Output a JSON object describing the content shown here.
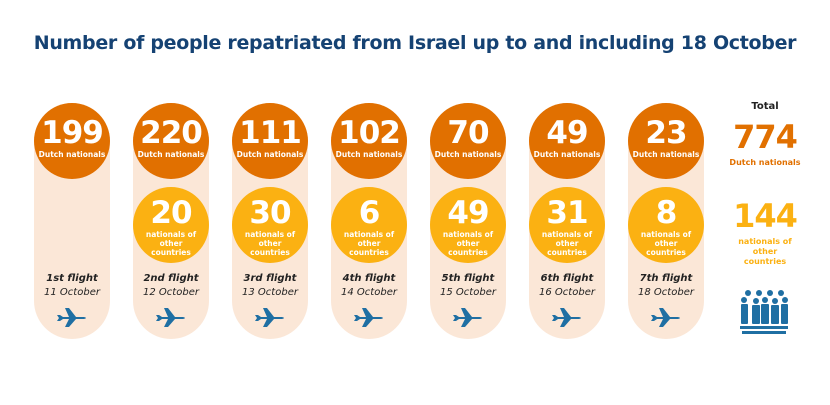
{
  "title": "Number of people repatriated from Israel up to and including 18 October",
  "colors": {
    "dutch": "#e17000",
    "other": "#fbb112",
    "title": "#154273",
    "pill": "#fbe7d7",
    "icon": "#1f6fa3"
  },
  "dutch_label": "Dutch nationals",
  "other_label": "nationals of other countries",
  "flights": [
    {
      "flight": "1st flight",
      "date": "11 October",
      "dutch": "199",
      "other": null
    },
    {
      "flight": "2nd flight",
      "date": "12 October",
      "dutch": "220",
      "other": "20"
    },
    {
      "flight": "3rd flight",
      "date": "13 October",
      "dutch": "111",
      "other": "30"
    },
    {
      "flight": "4th flight",
      "date": "14 October",
      "dutch": "102",
      "other": "6"
    },
    {
      "flight": "5th flight",
      "date": "15 October",
      "dutch": "70",
      "other": "49"
    },
    {
      "flight": "6th flight",
      "date": "16 October",
      "dutch": "49",
      "other": "31"
    },
    {
      "flight": "7th flight",
      "date": "18 October",
      "dutch": "23",
      "other": "8"
    }
  ],
  "total": {
    "heading": "Total",
    "dutch": "774",
    "other": "144",
    "icon": "people-group-icon"
  },
  "icons": {
    "flight": "airplane-icon"
  }
}
